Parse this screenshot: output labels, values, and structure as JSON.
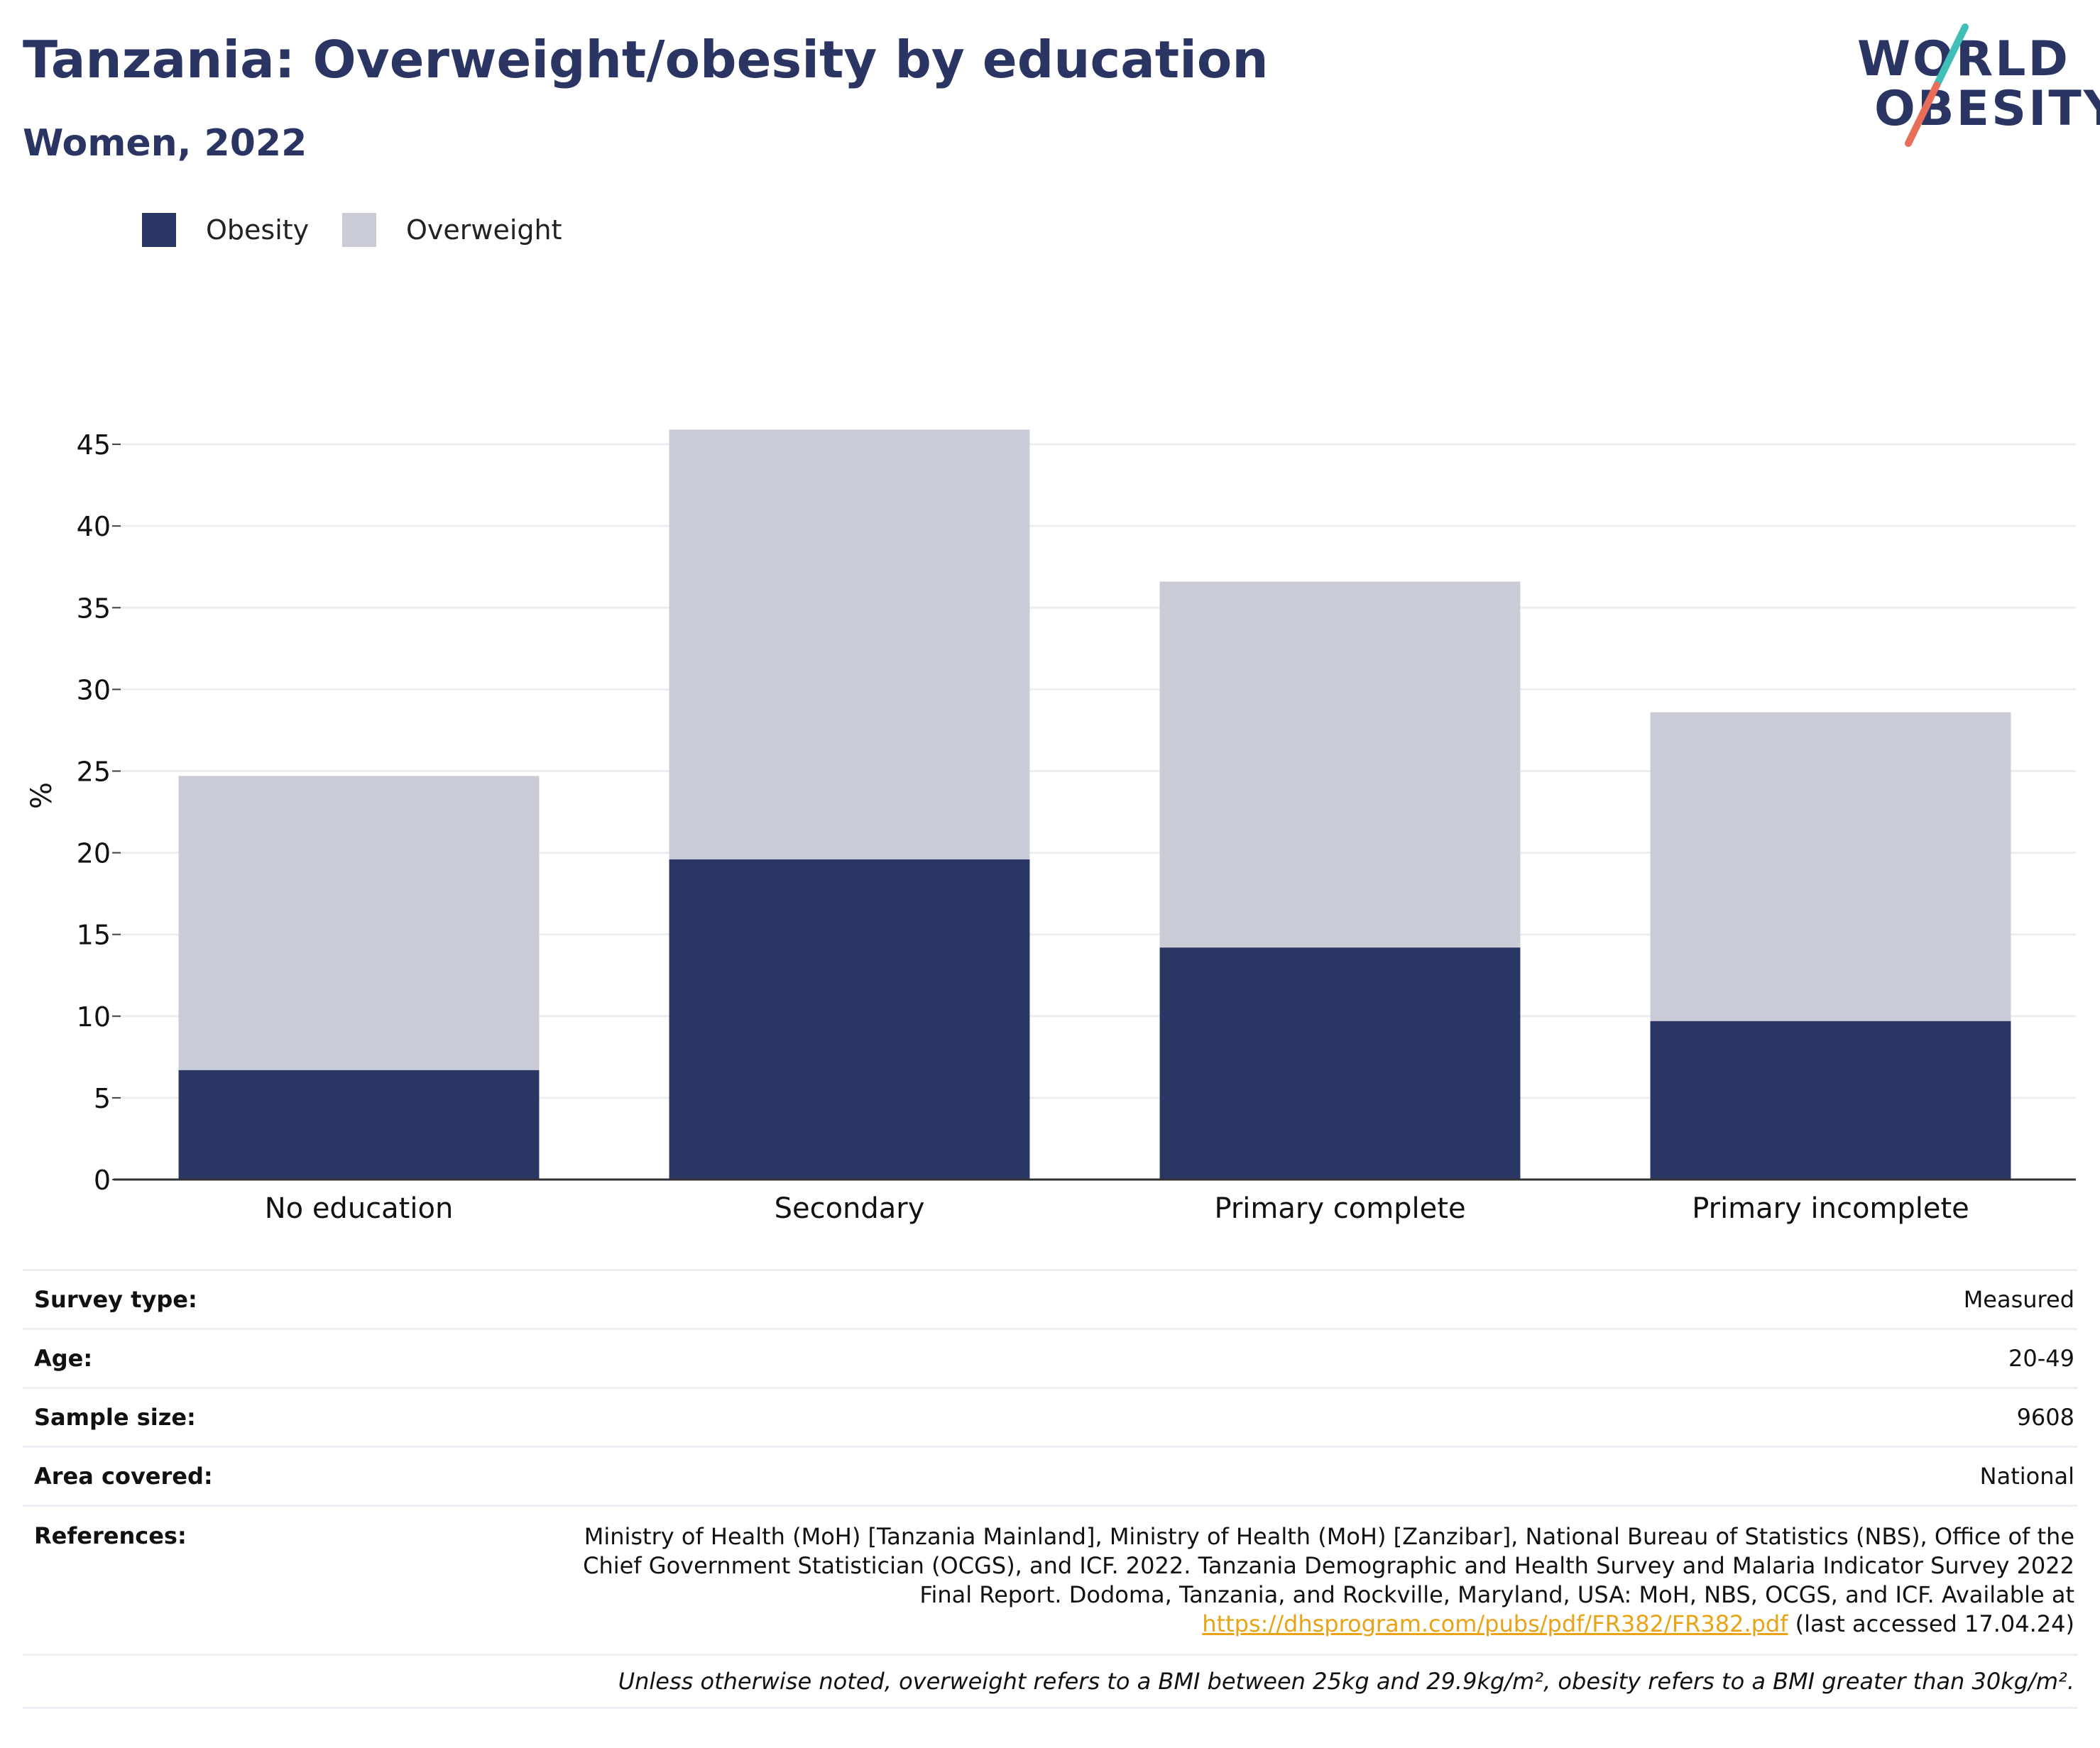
{
  "header": {
    "title": "Tanzania: Overweight/obesity by education",
    "subtitle": "Women, 2022"
  },
  "logo": {
    "line1": "WORLD",
    "line2": "OBESITY",
    "slash_colors": [
      "#3fbfb5",
      "#e86e5a"
    ],
    "text_color": "#2a3563"
  },
  "legend": {
    "items": [
      {
        "label": "Obesity",
        "color": "#2a3663"
      },
      {
        "label": "Overweight",
        "color": "#c9ccd7"
      }
    ]
  },
  "chart_data": {
    "type": "bar",
    "stacked": true,
    "categories": [
      "No education",
      "Secondary",
      "Primary complete",
      "Primary incomplete"
    ],
    "series": [
      {
        "name": "Obesity",
        "color": "#2a3663",
        "values": [
          6.7,
          19.6,
          14.2,
          9.7
        ]
      },
      {
        "name": "Overweight",
        "color": "#c9ccd7",
        "values": [
          18.0,
          26.3,
          22.4,
          18.9
        ]
      }
    ],
    "ylabel": "%",
    "ylim": [
      0,
      45
    ],
    "yticks": [
      0,
      5,
      10,
      15,
      20,
      25,
      30,
      35,
      40,
      45
    ],
    "grid": true
  },
  "info": {
    "survey_type": {
      "label": "Survey type:",
      "value": "Measured"
    },
    "age": {
      "label": "Age:",
      "value": "20-49"
    },
    "sample_size": {
      "label": "Sample size:",
      "value": "9608"
    },
    "area_covered": {
      "label": "Area covered:",
      "value": "National"
    },
    "references": {
      "label": "References:",
      "line1": "Ministry of Health (MoH) [Tanzania Mainland], Ministry of Health (MoH) [Zanzibar], National Bureau of Statistics (NBS), Office of the",
      "line2": "Chief Government Statistician (OCGS), and ICF. 2022. Tanzania Demographic and Health Survey and Malaria Indicator Survey 2022",
      "line3": "Final Report. Dodoma, Tanzania, and Rockville, Maryland, USA: MoH, NBS, OCGS, and ICF. Available at",
      "link": "https://dhsprogram.com/pubs/pdf/FR382/FR382.pdf",
      "after_link": " (last accessed 17.04.24)"
    },
    "note": "Unless otherwise noted, overweight refers to a BMI between 25kg and 29.9kg/m², obesity refers to a BMI greater than 30kg/m²."
  }
}
